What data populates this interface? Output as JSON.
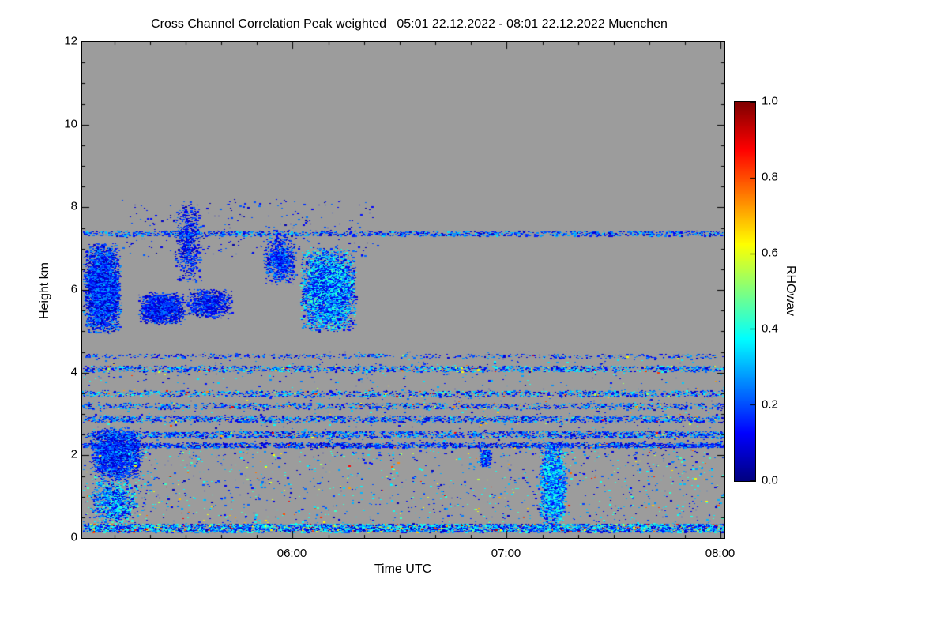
{
  "title": "Cross Channel Correlation Peak weighted   05:01 22.12.2022 - 08:01 22.12.2022 Muenchen",
  "chart_data": {
    "type": "heatmap",
    "title": "Cross Channel Correlation Peak weighted",
    "time_range_label": "05:01 22.12.2022 - 08:01 22.12.2022",
    "station": "Muenchen",
    "xlabel": "Time UTC",
    "ylabel": "Height km",
    "x_domain_hours": [
      5.0167,
      8.0167
    ],
    "x_tick_hours": [
      6,
      7,
      8
    ],
    "x_ticks": [
      "06:00",
      "07:00",
      "08:00"
    ],
    "x_minor_step_hours": 0.16667,
    "y_range_km": [
      0,
      12
    ],
    "y_tick_values": [
      12,
      10,
      8,
      6,
      4,
      2,
      0
    ],
    "y_tick_labels": [
      "12",
      "10",
      "8",
      "6",
      "4",
      "2",
      "0"
    ],
    "y_minor_step_km": 0.5,
    "background_color": "#9c9c9c",
    "no_data_color": "#9c9c9c",
    "colorbar": {
      "label": "RHOwav",
      "min": 0.0,
      "max": 1.0,
      "colormap": "jet",
      "ticks": [
        "1.0",
        "0.8",
        "0.6",
        "0.4",
        "0.2",
        "0.0"
      ],
      "tick_values": [
        1.0,
        0.8,
        0.6,
        0.4,
        0.2,
        0.0
      ],
      "stops": [
        "#000080",
        "#0000ff",
        "#00ffff",
        "#ffff00",
        "#ff0000",
        "#800000"
      ]
    },
    "features": [
      {
        "name": "cloud-upper-left",
        "shape": "cloud",
        "t": [
          5.02,
          5.2
        ],
        "h": [
          4.9,
          7.15
        ],
        "n": 5000,
        "v": [
          0.03,
          0.3
        ]
      },
      {
        "name": "cloud-a",
        "shape": "cloud",
        "t": [
          5.28,
          5.5
        ],
        "h": [
          5.15,
          5.95
        ],
        "n": 1800,
        "v": [
          0.03,
          0.25
        ]
      },
      {
        "name": "cloud-b",
        "shape": "cloud",
        "t": [
          5.5,
          5.72
        ],
        "h": [
          5.3,
          6.05
        ],
        "n": 900,
        "v": [
          0.03,
          0.25
        ]
      },
      {
        "name": "streak-virga",
        "shape": "cloud",
        "t": [
          5.44,
          5.58
        ],
        "h": [
          6.1,
          8.15
        ],
        "n": 700,
        "v": [
          0.03,
          0.25
        ]
      },
      {
        "name": "cloud-c",
        "shape": "cloud",
        "t": [
          5.86,
          6.02
        ],
        "h": [
          6.1,
          7.3
        ],
        "n": 900,
        "v": [
          0.05,
          0.3
        ]
      },
      {
        "name": "cloud-main",
        "shape": "cloud",
        "t": [
          6.03,
          6.3
        ],
        "h": [
          4.95,
          7.05
        ],
        "n": 5000,
        "v": [
          0.05,
          0.45
        ]
      },
      {
        "name": "layer-7p35km",
        "shape": "layer",
        "t": [
          5.02,
          8.02
        ],
        "h": [
          7.3,
          7.42
        ],
        "n": 1400,
        "v": [
          0.05,
          0.35
        ]
      },
      {
        "name": "layer-4p4km",
        "shape": "layer",
        "t": [
          5.02,
          8.02
        ],
        "h": [
          4.35,
          4.45
        ],
        "n": 500,
        "v": [
          0.05,
          0.3
        ]
      },
      {
        "name": "layer-4p1km",
        "shape": "layer",
        "t": [
          5.02,
          8.02
        ],
        "h": [
          4.02,
          4.16
        ],
        "n": 1500,
        "v": [
          0.05,
          0.4
        ],
        "warm_p": 0.05,
        "warm_v": [
          0.5,
          0.9
        ]
      },
      {
        "name": "layer-3p5km",
        "shape": "layer",
        "t": [
          5.02,
          8.02
        ],
        "h": [
          3.42,
          3.56
        ],
        "n": 1300,
        "v": [
          0.05,
          0.4
        ],
        "warm_p": 0.06,
        "warm_v": [
          0.5,
          0.95
        ]
      },
      {
        "name": "layer-3p2km",
        "shape": "layer",
        "t": [
          5.02,
          8.02
        ],
        "h": [
          3.12,
          3.26
        ],
        "n": 1100,
        "v": [
          0.05,
          0.35
        ],
        "warm_p": 0.04,
        "warm_v": [
          0.5,
          0.9
        ]
      },
      {
        "name": "layer-2p9km",
        "shape": "layer",
        "t": [
          5.02,
          8.02
        ],
        "h": [
          2.8,
          2.95
        ],
        "n": 1600,
        "v": [
          0.05,
          0.35
        ],
        "warm_p": 0.03,
        "warm_v": [
          0.5,
          0.9
        ]
      },
      {
        "name": "layer-2p5km",
        "shape": "layer",
        "t": [
          5.02,
          8.02
        ],
        "h": [
          2.42,
          2.58
        ],
        "n": 2000,
        "v": [
          0.05,
          0.35
        ],
        "warm_p": 0.03,
        "warm_v": [
          0.5,
          0.9
        ]
      },
      {
        "name": "layer-2p25km",
        "shape": "layer",
        "t": [
          5.02,
          8.02
        ],
        "h": [
          2.18,
          2.3
        ],
        "n": 2200,
        "v": [
          0.03,
          0.3
        ],
        "warm_p": 0.02,
        "warm_v": [
          0.5,
          0.9
        ]
      },
      {
        "name": "cloud-low-left",
        "shape": "cloud",
        "t": [
          5.05,
          5.3
        ],
        "h": [
          1.35,
          2.7
        ],
        "n": 3000,
        "v": [
          0.03,
          0.3
        ]
      },
      {
        "name": "cloud-low-left-2",
        "shape": "cloud",
        "t": [
          5.05,
          5.28
        ],
        "h": [
          0.3,
          1.45
        ],
        "n": 1200,
        "v": [
          0.05,
          0.45
        ]
      },
      {
        "name": "plume-0710",
        "shape": "cloud",
        "t": [
          7.15,
          7.28
        ],
        "h": [
          0.15,
          2.35
        ],
        "n": 2600,
        "v": [
          0.1,
          0.45
        ]
      },
      {
        "name": "blob-0653",
        "shape": "cloud",
        "t": [
          6.87,
          6.93
        ],
        "h": [
          1.7,
          2.15
        ],
        "n": 350,
        "v": [
          0.05,
          0.3
        ]
      },
      {
        "name": "bottom-band",
        "shape": "layer",
        "t": [
          5.02,
          8.02
        ],
        "h": [
          0.14,
          0.34
        ],
        "n": 5000,
        "v": [
          0.05,
          0.45
        ],
        "warm_p": 0.08,
        "warm_v": [
          0.5,
          0.95
        ]
      },
      {
        "name": "scatter-low",
        "shape": "uniform",
        "t": [
          5.02,
          8.02
        ],
        "h": [
          0.35,
          2.1
        ],
        "n": 1300,
        "v": [
          0.05,
          0.45
        ],
        "warm_p": 0.1,
        "warm_v": [
          0.5,
          0.9
        ]
      },
      {
        "name": "scatter-mid",
        "shape": "uniform",
        "t": [
          5.02,
          8.02
        ],
        "h": [
          2.0,
          4.5
        ],
        "n": 900,
        "v": [
          0.05,
          0.4
        ],
        "warm_p": 0.06,
        "warm_v": [
          0.5,
          0.9
        ]
      },
      {
        "name": "specks-upper",
        "shape": "uniform",
        "t": [
          5.2,
          6.4
        ],
        "h": [
          6.8,
          8.2
        ],
        "n": 250,
        "v": [
          0.03,
          0.25
        ]
      }
    ]
  }
}
